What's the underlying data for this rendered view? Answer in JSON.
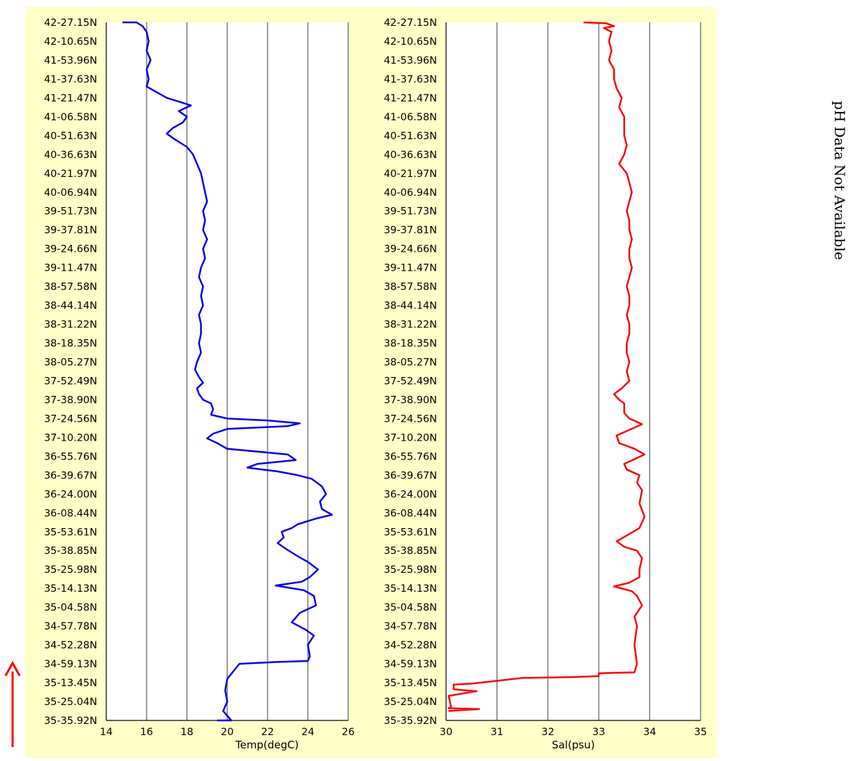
{
  "side_note": "pH Data Not Available",
  "colors": {
    "panel_bg": "#ffffc8",
    "plot_bg": "#ffffff",
    "temp_line": "#0000ee",
    "sal_line": "#ff0000",
    "arrow": "#ff0000",
    "grid": "#808080"
  },
  "chart_data": [
    {
      "type": "line",
      "xlabel": "Temp(degC)",
      "ylabel": "",
      "xlim": [
        14,
        26
      ],
      "xticks": [
        14,
        16,
        18,
        20,
        22,
        24,
        26
      ],
      "grid": "vertical",
      "categories": [
        "35-35.92N",
        "35-25.04N",
        "35-13.45N",
        "34-59.13N",
        "34-52.28N",
        "34-57.78N",
        "35-04.58N",
        "35-14.13N",
        "35-25.98N",
        "35-38.85N",
        "35-53.61N",
        "36-08.44N",
        "36-24.00N",
        "36-39.67N",
        "36-55.76N",
        "37-10.20N",
        "37-24.56N",
        "37-38.90N",
        "37-52.49N",
        "38-05.27N",
        "38-18.35N",
        "38-31.22N",
        "38-44.14N",
        "38-57.58N",
        "39-11.47N",
        "39-24.66N",
        "39-37.81N",
        "39-51.73N",
        "40-06.94N",
        "40-21.97N",
        "40-36.63N",
        "40-51.63N",
        "41-06.58N",
        "41-21.47N",
        "41-37.63N",
        "41-53.96N",
        "42-10.65N",
        "42-27.15N"
      ],
      "series": [
        {
          "values": [
            [
              19.5,
              0.0
            ],
            [
              20.2,
              0.0
            ],
            [
              19.8,
              0.5
            ],
            [
              20.0,
              1.0
            ],
            [
              19.9,
              1.6
            ],
            [
              20.0,
              2.2
            ],
            [
              20.6,
              3.0
            ],
            [
              21.5,
              3.05
            ],
            [
              22.5,
              3.1
            ],
            [
              24.0,
              3.15
            ],
            [
              24.1,
              3.4
            ],
            [
              24.0,
              4.0
            ],
            [
              24.3,
              4.5
            ],
            [
              23.9,
              4.8
            ],
            [
              23.2,
              5.2
            ],
            [
              23.6,
              5.7
            ],
            [
              24.4,
              6.1
            ],
            [
              24.3,
              6.6
            ],
            [
              23.8,
              6.9
            ],
            [
              22.4,
              7.15
            ],
            [
              23.7,
              7.35
            ],
            [
              24.1,
              7.6
            ],
            [
              24.5,
              8.0
            ],
            [
              24.0,
              8.4
            ],
            [
              23.5,
              8.7
            ],
            [
              22.9,
              9.1
            ],
            [
              22.5,
              9.4
            ],
            [
              22.8,
              9.7
            ],
            [
              22.7,
              10.0
            ],
            [
              23.2,
              10.2
            ],
            [
              23.5,
              10.4
            ],
            [
              24.4,
              10.7
            ],
            [
              25.2,
              10.9
            ],
            [
              24.7,
              11.2
            ],
            [
              24.6,
              11.6
            ],
            [
              24.9,
              12.0
            ],
            [
              24.7,
              12.4
            ],
            [
              24.2,
              12.8
            ],
            [
              23.5,
              13.0
            ],
            [
              22.5,
              13.2
            ],
            [
              21.0,
              13.4
            ],
            [
              21.5,
              13.6
            ],
            [
              23.4,
              13.8
            ],
            [
              23.0,
              14.1
            ],
            [
              20.0,
              14.4
            ],
            [
              19.5,
              14.7
            ],
            [
              19.0,
              14.95
            ],
            [
              19.3,
              15.2
            ],
            [
              20.0,
              15.45
            ],
            [
              23.0,
              15.6
            ],
            [
              23.6,
              15.75
            ],
            [
              22.0,
              15.9
            ],
            [
              20.0,
              16.0
            ],
            [
              19.2,
              16.2
            ],
            [
              19.3,
              16.5
            ],
            [
              19.2,
              16.8
            ],
            [
              18.8,
              17.0
            ],
            [
              18.6,
              17.3
            ],
            [
              18.5,
              17.6
            ],
            [
              18.8,
              17.9
            ],
            [
              18.6,
              18.2
            ],
            [
              18.4,
              18.6
            ],
            [
              18.5,
              19.0
            ],
            [
              18.7,
              19.5
            ],
            [
              18.6,
              20.0
            ],
            [
              18.7,
              20.5
            ],
            [
              18.7,
              21.0
            ],
            [
              18.6,
              21.5
            ],
            [
              18.8,
              22.0
            ],
            [
              18.7,
              22.5
            ],
            [
              18.8,
              23.0
            ],
            [
              18.6,
              23.5
            ],
            [
              18.7,
              24.0
            ],
            [
              18.9,
              24.5
            ],
            [
              18.8,
              25.0
            ],
            [
              19.0,
              25.5
            ],
            [
              18.8,
              26.0
            ],
            [
              18.9,
              26.5
            ],
            [
              18.8,
              27.0
            ],
            [
              19.0,
              27.5
            ],
            [
              18.9,
              28.0
            ],
            [
              18.8,
              28.5
            ],
            [
              18.7,
              29.0
            ],
            [
              18.5,
              29.5
            ],
            [
              18.3,
              30.0
            ],
            [
              18.0,
              30.4
            ],
            [
              17.4,
              30.8
            ],
            [
              17.0,
              31.1
            ],
            [
              17.3,
              31.4
            ],
            [
              17.8,
              31.7
            ],
            [
              18.0,
              32.0
            ],
            [
              17.6,
              32.3
            ],
            [
              18.2,
              32.6
            ],
            [
              17.0,
              33.0
            ],
            [
              16.5,
              33.3
            ],
            [
              16.0,
              33.6
            ],
            [
              16.1,
              34.0
            ],
            [
              16.0,
              34.5
            ],
            [
              16.2,
              35.0
            ],
            [
              16.0,
              35.5
            ],
            [
              16.1,
              36.0
            ],
            [
              16.0,
              36.5
            ],
            [
              15.8,
              36.8
            ],
            [
              15.5,
              37.0
            ],
            [
              14.8,
              37.0
            ]
          ]
        }
      ]
    },
    {
      "type": "line",
      "xlabel": "Sal(psu)",
      "ylabel": "",
      "xlim": [
        30,
        35
      ],
      "xticks": [
        30,
        31,
        32,
        33,
        34,
        35
      ],
      "grid": "vertical",
      "categories": [
        "35-35.92N",
        "35-25.04N",
        "35-13.45N",
        "34-59.13N",
        "34-52.28N",
        "34-57.78N",
        "35-04.58N",
        "35-14.13N",
        "35-25.98N",
        "35-38.85N",
        "35-53.61N",
        "36-08.44N",
        "36-24.00N",
        "36-39.67N",
        "36-55.76N",
        "37-10.20N",
        "37-24.56N",
        "37-38.90N",
        "37-52.49N",
        "38-05.27N",
        "38-18.35N",
        "38-31.22N",
        "38-44.14N",
        "38-57.58N",
        "39-11.47N",
        "39-24.66N",
        "39-37.81N",
        "39-51.73N",
        "40-06.94N",
        "40-21.97N",
        "40-36.63N",
        "40-51.63N",
        "41-06.58N",
        "41-21.47N",
        "41-37.63N",
        "41-53.96N",
        "42-10.65N",
        "42-27.15N"
      ],
      "series": [
        {
          "values": [
            [
              30.05,
              0.5
            ],
            [
              30.65,
              0.6
            ],
            [
              30.05,
              0.65
            ],
            [
              30.1,
              0.7
            ],
            [
              30.05,
              1.3
            ],
            [
              30.6,
              1.55
            ],
            [
              30.15,
              1.65
            ],
            [
              30.15,
              1.9
            ],
            [
              30.5,
              1.95
            ],
            [
              31.0,
              2.1
            ],
            [
              31.5,
              2.25
            ],
            [
              32.5,
              2.3
            ],
            [
              33.0,
              2.35
            ],
            [
              33.0,
              2.5
            ],
            [
              33.7,
              2.55
            ],
            [
              33.75,
              3.0
            ],
            [
              33.7,
              4.0
            ],
            [
              33.75,
              5.0
            ],
            [
              33.7,
              5.5
            ],
            [
              33.85,
              6.1
            ],
            [
              33.75,
              6.6
            ],
            [
              33.65,
              6.85
            ],
            [
              33.3,
              7.1
            ],
            [
              33.6,
              7.3
            ],
            [
              33.8,
              7.6
            ],
            [
              33.8,
              8.0
            ],
            [
              33.85,
              8.6
            ],
            [
              33.75,
              9.0
            ],
            [
              33.5,
              9.2
            ],
            [
              33.35,
              9.5
            ],
            [
              33.55,
              9.8
            ],
            [
              33.8,
              10.2
            ],
            [
              33.9,
              10.8
            ],
            [
              33.8,
              11.5
            ],
            [
              33.85,
              12.2
            ],
            [
              33.75,
              12.6
            ],
            [
              33.8,
              13.0
            ],
            [
              33.55,
              13.3
            ],
            [
              33.5,
              13.6
            ],
            [
              33.9,
              14.1
            ],
            [
              33.7,
              14.4
            ],
            [
              33.4,
              14.7
            ],
            [
              33.35,
              15.1
            ],
            [
              33.6,
              15.4
            ],
            [
              33.85,
              15.7
            ],
            [
              33.6,
              16.0
            ],
            [
              33.5,
              16.3
            ],
            [
              33.5,
              16.8
            ],
            [
              33.4,
              17.0
            ],
            [
              33.3,
              17.3
            ],
            [
              33.45,
              17.6
            ],
            [
              33.6,
              18.0
            ],
            [
              33.55,
              18.5
            ],
            [
              33.6,
              19.0
            ],
            [
              33.55,
              19.5
            ],
            [
              33.55,
              20.0
            ],
            [
              33.6,
              20.5
            ],
            [
              33.6,
              21.0
            ],
            [
              33.55,
              21.5
            ],
            [
              33.6,
              22.0
            ],
            [
              33.6,
              22.5
            ],
            [
              33.55,
              23.0
            ],
            [
              33.6,
              23.5
            ],
            [
              33.65,
              24.0
            ],
            [
              33.6,
              24.5
            ],
            [
              33.6,
              25.0
            ],
            [
              33.65,
              25.5
            ],
            [
              33.6,
              26.0
            ],
            [
              33.6,
              26.5
            ],
            [
              33.55,
              27.0
            ],
            [
              33.6,
              27.5
            ],
            [
              33.65,
              28.0
            ],
            [
              33.6,
              28.5
            ],
            [
              33.55,
              29.0
            ],
            [
              33.4,
              29.5
            ],
            [
              33.5,
              30.0
            ],
            [
              33.55,
              30.5
            ],
            [
              33.5,
              31.0
            ],
            [
              33.5,
              31.5
            ],
            [
              33.5,
              32.0
            ],
            [
              33.4,
              32.5
            ],
            [
              33.45,
              33.0
            ],
            [
              33.35,
              33.5
            ],
            [
              33.3,
              34.0
            ],
            [
              33.3,
              34.5
            ],
            [
              33.2,
              35.0
            ],
            [
              33.25,
              35.5
            ],
            [
              33.2,
              36.0
            ],
            [
              33.25,
              36.5
            ],
            [
              33.1,
              36.7
            ],
            [
              33.3,
              36.8
            ],
            [
              33.15,
              36.95
            ],
            [
              32.7,
              37.0
            ]
          ]
        }
      ]
    }
  ]
}
